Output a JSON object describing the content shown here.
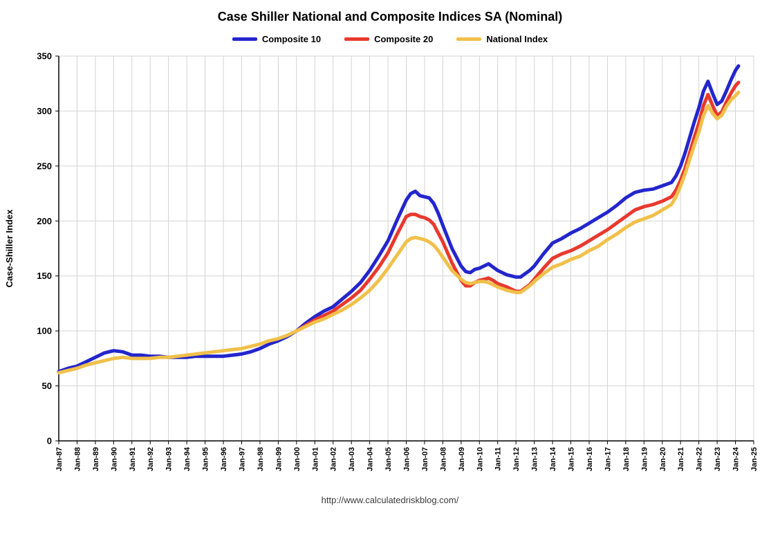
{
  "chart_data": {
    "type": "line",
    "title": "Case Shiller National and Composite Indices SA (Nominal)",
    "xlabel": "",
    "ylabel": "Case-Shiller Index",
    "footer": "http://www.calculatedriskblog.com/",
    "ylim": [
      0,
      350
    ],
    "ytick_step": 50,
    "x_range": [
      1987,
      2025
    ],
    "grid": true,
    "grid_color": "#d3d3d3",
    "legend_position": "top",
    "x_ticks": [
      "Jan-87",
      "Jan-88",
      "Jan-89",
      "Jan-90",
      "Jan-91",
      "Jan-92",
      "Jan-93",
      "Jan-94",
      "Jan-95",
      "Jan-96",
      "Jan-97",
      "Jan-98",
      "Jan-99",
      "Jan-00",
      "Jan-01",
      "Jan-02",
      "Jan-03",
      "Jan-04",
      "Jan-05",
      "Jan-06",
      "Jan-07",
      "Jan-08",
      "Jan-09",
      "Jan-10",
      "Jan-11",
      "Jan-12",
      "Jan-13",
      "Jan-14",
      "Jan-15",
      "Jan-16",
      "Jan-17",
      "Jan-18",
      "Jan-19",
      "Jan-20",
      "Jan-21",
      "Jan-22",
      "Jan-23",
      "Jan-24",
      "Jan-25"
    ],
    "series": [
      {
        "name": "Composite 10",
        "color": "#2326cc",
        "width": 5,
        "points": [
          [
            1987,
            63
          ],
          [
            1987.5,
            66
          ],
          [
            1988,
            68
          ],
          [
            1988.5,
            72
          ],
          [
            1989,
            76
          ],
          [
            1989.5,
            80
          ],
          [
            1990,
            82
          ],
          [
            1990.5,
            81
          ],
          [
            1991,
            78
          ],
          [
            1991.5,
            78
          ],
          [
            1992,
            77
          ],
          [
            1992.5,
            77
          ],
          [
            1993,
            76
          ],
          [
            1993.5,
            76
          ],
          [
            1994,
            76
          ],
          [
            1994.5,
            77
          ],
          [
            1995,
            77
          ],
          [
            1995.5,
            77
          ],
          [
            1996,
            77
          ],
          [
            1996.5,
            78
          ],
          [
            1997,
            79
          ],
          [
            1997.5,
            81
          ],
          [
            1998,
            84
          ],
          [
            1998.5,
            88
          ],
          [
            1999,
            91
          ],
          [
            1999.5,
            95
          ],
          [
            2000,
            100
          ],
          [
            2000.5,
            107
          ],
          [
            2001,
            113
          ],
          [
            2001.5,
            118
          ],
          [
            2002,
            122
          ],
          [
            2002.5,
            129
          ],
          [
            2003,
            136
          ],
          [
            2003.5,
            144
          ],
          [
            2004,
            155
          ],
          [
            2004.5,
            168
          ],
          [
            2005,
            182
          ],
          [
            2005.5,
            201
          ],
          [
            2006,
            219
          ],
          [
            2006.25,
            225
          ],
          [
            2006.5,
            227
          ],
          [
            2006.75,
            223
          ],
          [
            2007,
            222
          ],
          [
            2007.25,
            221
          ],
          [
            2007.5,
            216
          ],
          [
            2007.75,
            207
          ],
          [
            2008,
            196
          ],
          [
            2008.5,
            175
          ],
          [
            2009,
            159
          ],
          [
            2009.25,
            154
          ],
          [
            2009.5,
            153
          ],
          [
            2009.75,
            156
          ],
          [
            2010,
            157
          ],
          [
            2010.25,
            159
          ],
          [
            2010.5,
            161
          ],
          [
            2010.75,
            158
          ],
          [
            2011,
            155
          ],
          [
            2011.5,
            151
          ],
          [
            2012,
            149
          ],
          [
            2012.25,
            149
          ],
          [
            2012.5,
            152
          ],
          [
            2012.75,
            155
          ],
          [
            2013,
            159
          ],
          [
            2013.5,
            170
          ],
          [
            2014,
            180
          ],
          [
            2014.5,
            184
          ],
          [
            2015,
            189
          ],
          [
            2015.5,
            193
          ],
          [
            2016,
            198
          ],
          [
            2016.5,
            203
          ],
          [
            2017,
            208
          ],
          [
            2017.5,
            214
          ],
          [
            2018,
            221
          ],
          [
            2018.5,
            226
          ],
          [
            2019,
            228
          ],
          [
            2019.5,
            229
          ],
          [
            2020,
            232
          ],
          [
            2020.5,
            235
          ],
          [
            2020.75,
            241
          ],
          [
            2021,
            250
          ],
          [
            2021.25,
            262
          ],
          [
            2021.5,
            276
          ],
          [
            2021.75,
            290
          ],
          [
            2022,
            303
          ],
          [
            2022.25,
            318
          ],
          [
            2022.5,
            327
          ],
          [
            2022.75,
            316
          ],
          [
            2023,
            306
          ],
          [
            2023.25,
            309
          ],
          [
            2023.5,
            318
          ],
          [
            2023.75,
            328
          ],
          [
            2024,
            337
          ],
          [
            2024.17,
            341
          ]
        ]
      },
      {
        "name": "Composite 20",
        "color": "#e8392f",
        "width": 5,
        "points": [
          [
            2000,
            100
          ],
          [
            2000.5,
            105
          ],
          [
            2001,
            110
          ],
          [
            2001.5,
            114
          ],
          [
            2002,
            118
          ],
          [
            2002.5,
            124
          ],
          [
            2003,
            130
          ],
          [
            2003.5,
            137
          ],
          [
            2004,
            147
          ],
          [
            2004.5,
            158
          ],
          [
            2005,
            171
          ],
          [
            2005.5,
            188
          ],
          [
            2006,
            204
          ],
          [
            2006.25,
            206
          ],
          [
            2006.5,
            206
          ],
          [
            2006.75,
            204
          ],
          [
            2007,
            203
          ],
          [
            2007.25,
            201
          ],
          [
            2007.5,
            197
          ],
          [
            2007.75,
            189
          ],
          [
            2008,
            181
          ],
          [
            2008.5,
            162
          ],
          [
            2009,
            146
          ],
          [
            2009.25,
            141
          ],
          [
            2009.5,
            141
          ],
          [
            2009.75,
            144
          ],
          [
            2010,
            146
          ],
          [
            2010.25,
            147
          ],
          [
            2010.5,
            148
          ],
          [
            2010.75,
            146
          ],
          [
            2011,
            143
          ],
          [
            2011.5,
            140
          ],
          [
            2012,
            136
          ],
          [
            2012.25,
            136
          ],
          [
            2012.5,
            139
          ],
          [
            2012.75,
            142
          ],
          [
            2013,
            147
          ],
          [
            2013.5,
            157
          ],
          [
            2014,
            166
          ],
          [
            2014.5,
            170
          ],
          [
            2015,
            173
          ],
          [
            2015.5,
            177
          ],
          [
            2016,
            182
          ],
          [
            2016.5,
            187
          ],
          [
            2017,
            192
          ],
          [
            2017.5,
            198
          ],
          [
            2018,
            204
          ],
          [
            2018.5,
            210
          ],
          [
            2019,
            213
          ],
          [
            2019.5,
            215
          ],
          [
            2020,
            218
          ],
          [
            2020.5,
            222
          ],
          [
            2020.75,
            228
          ],
          [
            2021,
            237
          ],
          [
            2021.25,
            248
          ],
          [
            2021.5,
            262
          ],
          [
            2021.75,
            276
          ],
          [
            2022,
            289
          ],
          [
            2022.25,
            305
          ],
          [
            2022.5,
            315
          ],
          [
            2022.75,
            305
          ],
          [
            2023,
            296
          ],
          [
            2023.25,
            299
          ],
          [
            2023.5,
            308
          ],
          [
            2023.75,
            316
          ],
          [
            2024,
            323
          ],
          [
            2024.17,
            326
          ]
        ]
      },
      {
        "name": "National Index",
        "color": "#f0c04a",
        "width": 5,
        "points": [
          [
            1987,
            62
          ],
          [
            1987.5,
            64
          ],
          [
            1988,
            66
          ],
          [
            1988.5,
            69
          ],
          [
            1989,
            71
          ],
          [
            1989.5,
            73
          ],
          [
            1990,
            75
          ],
          [
            1990.5,
            76
          ],
          [
            1991,
            75
          ],
          [
            1991.5,
            75
          ],
          [
            1992,
            75
          ],
          [
            1992.5,
            76
          ],
          [
            1993,
            76
          ],
          [
            1993.5,
            77
          ],
          [
            1994,
            78
          ],
          [
            1994.5,
            79
          ],
          [
            1995,
            80
          ],
          [
            1995.5,
            81
          ],
          [
            1996,
            82
          ],
          [
            1996.5,
            83
          ],
          [
            1997,
            84
          ],
          [
            1997.5,
            86
          ],
          [
            1998,
            88
          ],
          [
            1998.5,
            91
          ],
          [
            1999,
            93
          ],
          [
            1999.5,
            96
          ],
          [
            2000,
            100
          ],
          [
            2000.5,
            104
          ],
          [
            2001,
            108
          ],
          [
            2001.5,
            111
          ],
          [
            2002,
            115
          ],
          [
            2002.5,
            119
          ],
          [
            2003,
            124
          ],
          [
            2003.5,
            130
          ],
          [
            2004,
            137
          ],
          [
            2004.5,
            146
          ],
          [
            2005,
            157
          ],
          [
            2005.5,
            169
          ],
          [
            2006,
            181
          ],
          [
            2006.25,
            184
          ],
          [
            2006.5,
            185
          ],
          [
            2006.75,
            184
          ],
          [
            2007,
            183
          ],
          [
            2007.25,
            181
          ],
          [
            2007.5,
            178
          ],
          [
            2007.75,
            173
          ],
          [
            2008,
            167
          ],
          [
            2008.5,
            155
          ],
          [
            2009,
            147
          ],
          [
            2009.25,
            144
          ],
          [
            2009.5,
            143
          ],
          [
            2009.75,
            144
          ],
          [
            2010,
            145
          ],
          [
            2010.25,
            145
          ],
          [
            2010.5,
            144
          ],
          [
            2010.75,
            142
          ],
          [
            2011,
            140
          ],
          [
            2011.5,
            137
          ],
          [
            2012,
            135
          ],
          [
            2012.25,
            135
          ],
          [
            2012.5,
            138
          ],
          [
            2012.75,
            141
          ],
          [
            2013,
            145
          ],
          [
            2013.5,
            152
          ],
          [
            2014,
            158
          ],
          [
            2014.5,
            161
          ],
          [
            2015,
            165
          ],
          [
            2015.5,
            168
          ],
          [
            2016,
            173
          ],
          [
            2016.5,
            177
          ],
          [
            2017,
            183
          ],
          [
            2017.5,
            188
          ],
          [
            2018,
            194
          ],
          [
            2018.5,
            199
          ],
          [
            2019,
            202
          ],
          [
            2019.5,
            205
          ],
          [
            2020,
            210
          ],
          [
            2020.5,
            215
          ],
          [
            2020.75,
            222
          ],
          [
            2021,
            232
          ],
          [
            2021.25,
            243
          ],
          [
            2021.5,
            256
          ],
          [
            2021.75,
            269
          ],
          [
            2022,
            281
          ],
          [
            2022.25,
            296
          ],
          [
            2022.5,
            305
          ],
          [
            2022.75,
            298
          ],
          [
            2023,
            293
          ],
          [
            2023.25,
            296
          ],
          [
            2023.5,
            304
          ],
          [
            2023.75,
            310
          ],
          [
            2024,
            314
          ],
          [
            2024.17,
            317
          ]
        ]
      }
    ]
  }
}
